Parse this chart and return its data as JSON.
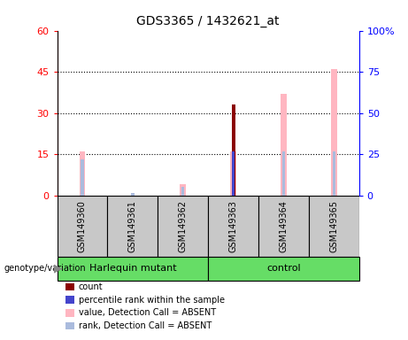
{
  "title": "GDS3365 / 1432621_at",
  "samples": [
    "GSM149360",
    "GSM149361",
    "GSM149362",
    "GSM149363",
    "GSM149364",
    "GSM149365"
  ],
  "ylim_left": [
    0,
    60
  ],
  "ylim_right": [
    0,
    100
  ],
  "yticks_left": [
    0,
    15,
    30,
    45,
    60
  ],
  "yticks_right": [
    0,
    25,
    50,
    75,
    100
  ],
  "ytick_labels_right": [
    "0",
    "25",
    "50",
    "75",
    "100%"
  ],
  "count_values": [
    0,
    0,
    0,
    33,
    0,
    0
  ],
  "rank_values": [
    0,
    0,
    0,
    16,
    0,
    0
  ],
  "absent_value_values": [
    16,
    0,
    4,
    16,
    37,
    46
  ],
  "absent_rank_values": [
    13,
    1,
    3,
    0,
    16,
    16
  ],
  "count_color": "#8B0000",
  "rank_color": "#4444CC",
  "absent_value_color": "#FFB6C1",
  "absent_rank_color": "#AABBDD",
  "group_label_1": "Harlequin mutant",
  "group_label_2": "control",
  "group_color": "#66DD66",
  "sample_box_color": "#C8C8C8",
  "legend_items": [
    {
      "label": "count",
      "color": "#8B0000"
    },
    {
      "label": "percentile rank within the sample",
      "color": "#4444CC"
    },
    {
      "label": "value, Detection Call = ABSENT",
      "color": "#FFB6C1"
    },
    {
      "label": "rank, Detection Call = ABSENT",
      "color": "#AABBDD"
    }
  ],
  "genotype_label": "genotype/variation"
}
